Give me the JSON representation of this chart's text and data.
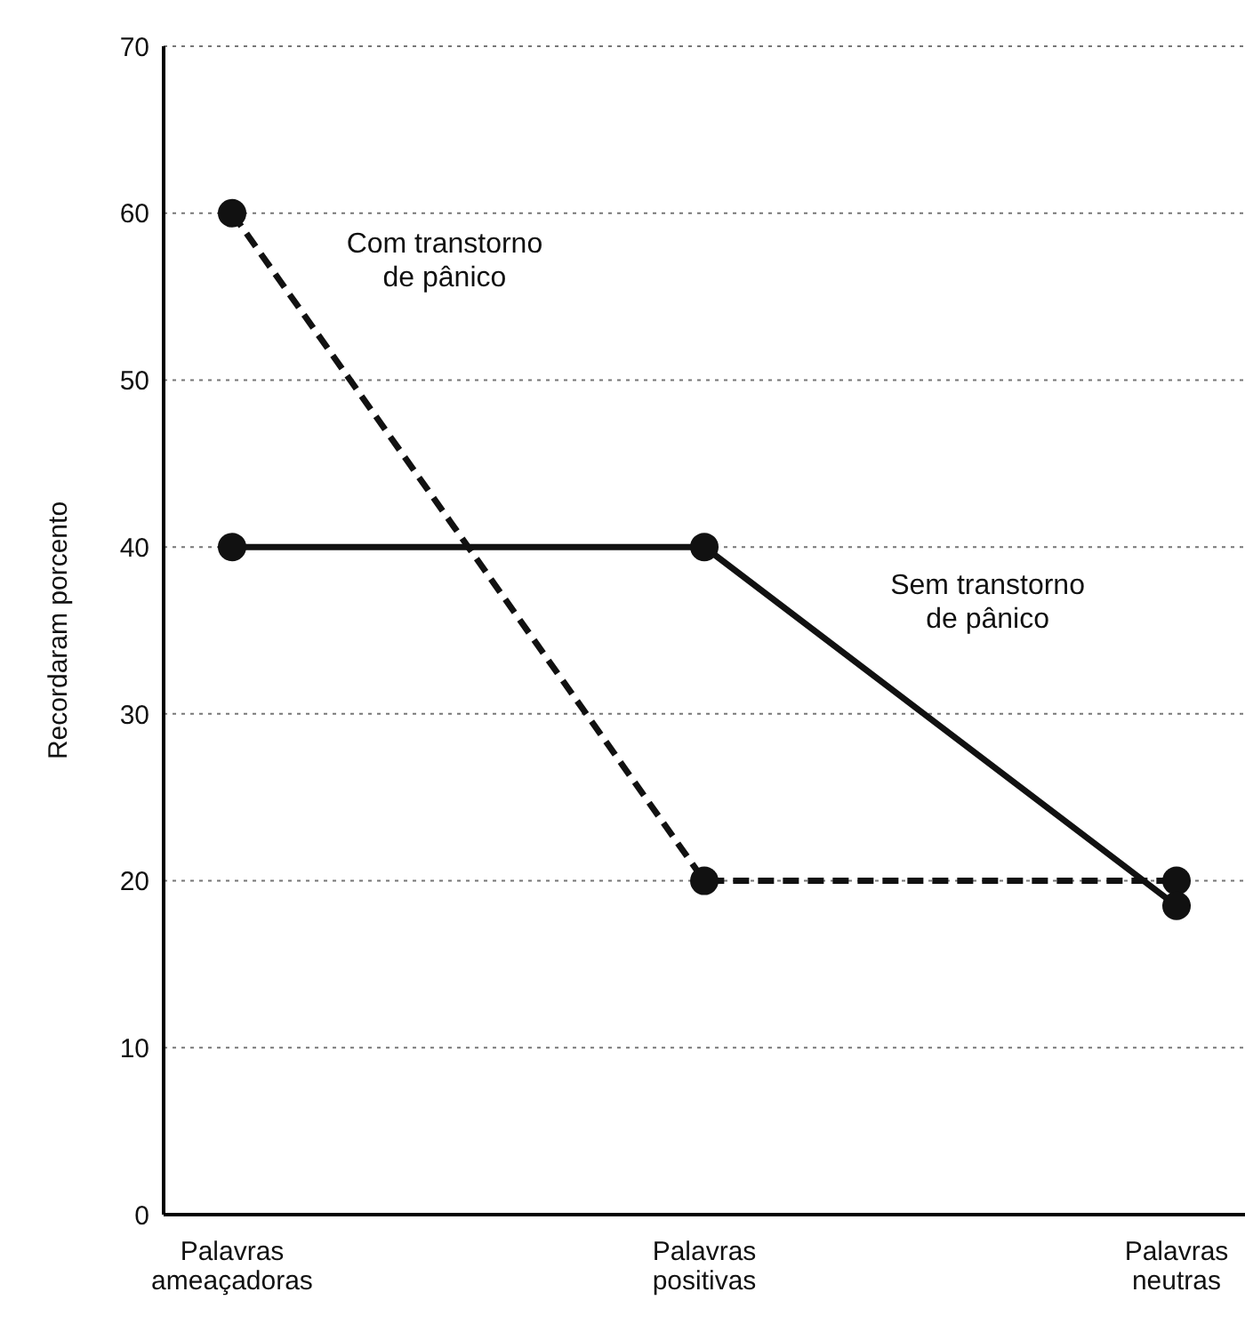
{
  "chart_data": {
    "type": "line",
    "ylabel": "Recordaram porcento",
    "categories": [
      "Palavras ameaçadoras",
      "Palavras positivas",
      "Palavras neutras"
    ],
    "series": [
      {
        "name": "Com transtorno de pânico",
        "color": "#111111",
        "values": [
          60,
          20,
          20
        ],
        "line_style": "dashed"
      },
      {
        "name": "Sem transtorno de pânico",
        "color": "#111111",
        "values": [
          40,
          40,
          18.5
        ],
        "line_style": "solid"
      }
    ],
    "ylim": [
      0,
      70
    ],
    "yticks": [
      0,
      10,
      20,
      30,
      40,
      50,
      60,
      70
    ],
    "grid": "y",
    "legend": false,
    "marker": "circle"
  }
}
